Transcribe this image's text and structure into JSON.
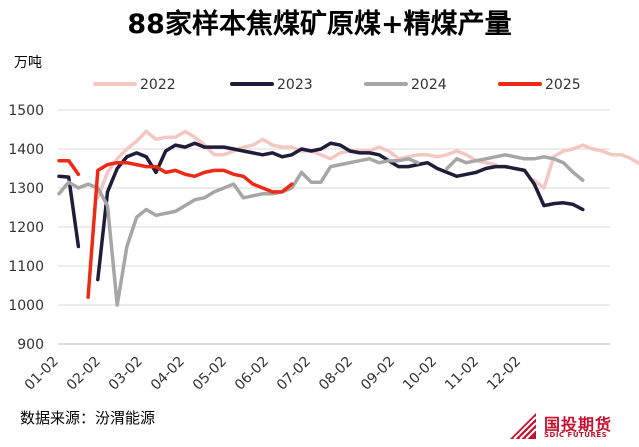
{
  "chart_data": {
    "type": "line",
    "title": "88家样本焦煤矿原煤+精煤产量",
    "ylabel": "万吨",
    "xlabel": "",
    "ylim": [
      900,
      1500
    ],
    "yticks": [
      900,
      1000,
      1100,
      1200,
      1300,
      1400,
      1500
    ],
    "xticks": [
      "01-02",
      "02-02",
      "03-02",
      "04-02",
      "05-02",
      "06-02",
      "07-02",
      "08-02",
      "09-02",
      "10-02",
      "11-02",
      "12-02"
    ],
    "grid": "horizontal",
    "legend_position": "top",
    "x_unit": "week index from 01-02",
    "series": [
      {
        "name": "2022",
        "color": "#f4c7c3",
        "segments": [
          [
            [
              4,
              1275
            ],
            [
              5,
              1340
            ],
            [
              6,
              1375
            ],
            [
              7,
              1400
            ],
            [
              8,
              1420
            ],
            [
              9,
              1445
            ],
            [
              10,
              1425
            ],
            [
              11,
              1430
            ],
            [
              12,
              1430
            ],
            [
              13,
              1445
            ],
            [
              14,
              1430
            ],
            [
              15,
              1410
            ],
            [
              16,
              1385
            ],
            [
              17,
              1385
            ],
            [
              18,
              1395
            ],
            [
              19,
              1405
            ],
            [
              20,
              1410
            ],
            [
              21,
              1425
            ],
            [
              22,
              1410
            ],
            [
              23,
              1405
            ],
            [
              24,
              1405
            ],
            [
              25,
              1395
            ],
            [
              26,
              1395
            ],
            [
              27,
              1385
            ],
            [
              28,
              1375
            ],
            [
              29,
              1390
            ],
            [
              30,
              1395
            ],
            [
              31,
              1395
            ],
            [
              32,
              1395
            ],
            [
              33,
              1405
            ],
            [
              34,
              1395
            ],
            [
              35,
              1375
            ],
            [
              36,
              1380
            ],
            [
              37,
              1385
            ],
            [
              38,
              1385
            ],
            [
              39,
              1380
            ],
            [
              40,
              1385
            ],
            [
              41,
              1395
            ],
            [
              42,
              1385
            ],
            [
              43,
              1370
            ],
            [
              44,
              1365
            ],
            [
              45,
              1360
            ]
          ],
          [
            [
              49,
              1320
            ],
            [
              50,
              1300
            ],
            [
              51,
              1380
            ],
            [
              52,
              1395
            ],
            [
              53,
              1400
            ],
            [
              54,
              1410
            ],
            [
              55,
              1400
            ],
            [
              56,
              1395
            ],
            [
              57,
              1385
            ],
            [
              58,
              1385
            ],
            [
              59,
              1375
            ],
            [
              60,
              1360
            ],
            [
              61,
              1325
            ],
            [
              62,
              1310
            ]
          ]
        ]
      },
      {
        "name": "2023",
        "color": "#1f1d3a",
        "segments": [
          [
            [
              0,
              1330
            ],
            [
              1,
              1328
            ],
            [
              2,
              1150
            ]
          ],
          [
            [
              4,
              1065
            ],
            [
              5,
              1290
            ],
            [
              6,
              1350
            ],
            [
              7,
              1380
            ],
            [
              8,
              1390
            ],
            [
              9,
              1380
            ],
            [
              10,
              1340
            ],
            [
              11,
              1395
            ],
            [
              12,
              1410
            ],
            [
              13,
              1405
            ],
            [
              14,
              1415
            ],
            [
              15,
              1405
            ],
            [
              16,
              1405
            ],
            [
              17,
              1405
            ],
            [
              18,
              1400
            ],
            [
              19,
              1395
            ],
            [
              20,
              1390
            ],
            [
              21,
              1385
            ],
            [
              22,
              1390
            ],
            [
              23,
              1380
            ],
            [
              24,
              1385
            ],
            [
              25,
              1400
            ],
            [
              26,
              1395
            ],
            [
              27,
              1400
            ],
            [
              28,
              1415
            ],
            [
              29,
              1410
            ],
            [
              30,
              1395
            ],
            [
              31,
              1390
            ],
            [
              32,
              1390
            ],
            [
              33,
              1385
            ],
            [
              34,
              1370
            ],
            [
              35,
              1355
            ],
            [
              36,
              1355
            ],
            [
              37,
              1360
            ],
            [
              38,
              1365
            ],
            [
              39,
              1350
            ],
            [
              40,
              1340
            ],
            [
              41,
              1330
            ],
            [
              42,
              1335
            ],
            [
              43,
              1340
            ],
            [
              44,
              1350
            ],
            [
              45,
              1355
            ],
            [
              46,
              1355
            ],
            [
              47,
              1350
            ],
            [
              48,
              1345
            ],
            [
              49,
              1310
            ],
            [
              50,
              1255
            ],
            [
              51,
              1260
            ],
            [
              52,
              1262
            ],
            [
              53,
              1258
            ],
            [
              54,
              1245
            ]
          ]
        ]
      },
      {
        "name": "2024",
        "color": "#a6a6a6",
        "segments": [
          [
            [
              0,
              1285
            ],
            [
              1,
              1315
            ],
            [
              2,
              1300
            ],
            [
              3,
              1310
            ],
            [
              4,
              1300
            ],
            [
              5,
              1255
            ],
            [
              6,
              1000
            ],
            [
              7,
              1150
            ],
            [
              8,
              1225
            ],
            [
              9,
              1245
            ],
            [
              10,
              1230
            ],
            [
              11,
              1235
            ],
            [
              12,
              1240
            ],
            [
              13,
              1255
            ],
            [
              14,
              1270
            ],
            [
              15,
              1275
            ],
            [
              16,
              1290
            ],
            [
              17,
              1300
            ],
            [
              18,
              1310
            ],
            [
              19,
              1275
            ],
            [
              20,
              1280
            ],
            [
              21,
              1285
            ],
            [
              22,
              1285
            ],
            [
              23,
              1290
            ],
            [
              24,
              1300
            ],
            [
              25,
              1340
            ],
            [
              26,
              1315
            ],
            [
              27,
              1315
            ],
            [
              28,
              1355
            ],
            [
              29,
              1360
            ],
            [
              30,
              1365
            ],
            [
              31,
              1370
            ],
            [
              32,
              1375
            ],
            [
              33,
              1365
            ],
            [
              34,
              1370
            ],
            [
              35,
              1370
            ],
            [
              36,
              1375
            ],
            [
              37,
              1365
            ]
          ],
          [
            [
              40,
              1350
            ],
            [
              41,
              1375
            ],
            [
              42,
              1365
            ],
            [
              43,
              1370
            ],
            [
              44,
              1375
            ],
            [
              45,
              1380
            ],
            [
              46,
              1385
            ],
            [
              47,
              1380
            ],
            [
              48,
              1375
            ],
            [
              49,
              1375
            ],
            [
              50,
              1380
            ],
            [
              51,
              1375
            ],
            [
              52,
              1365
            ],
            [
              53,
              1340
            ],
            [
              54,
              1320
            ]
          ]
        ]
      },
      {
        "name": "2025",
        "color": "#ee2a16",
        "segments": [
          [
            [
              0,
              1370
            ],
            [
              1,
              1370
            ],
            [
              2,
              1335
            ]
          ],
          [
            [
              3,
              1020
            ],
            [
              4,
              1345
            ],
            [
              5,
              1360
            ],
            [
              6,
              1365
            ],
            [
              7,
              1365
            ],
            [
              8,
              1360
            ],
            [
              9,
              1355
            ],
            [
              10,
              1355
            ],
            [
              11,
              1340
            ],
            [
              12,
              1345
            ],
            [
              13,
              1335
            ],
            [
              14,
              1330
            ],
            [
              15,
              1340
            ],
            [
              16,
              1345
            ],
            [
              17,
              1345
            ],
            [
              18,
              1335
            ],
            [
              19,
              1330
            ],
            [
              20,
              1310
            ],
            [
              21,
              1300
            ],
            [
              22,
              1290
            ],
            [
              23,
              1290
            ],
            [
              24,
              1310
            ]
          ]
        ]
      }
    ]
  },
  "source_text": "数据来源：汾渭能源",
  "logo": {
    "cn": "国投期货",
    "en": "SDIC FUTURES"
  }
}
